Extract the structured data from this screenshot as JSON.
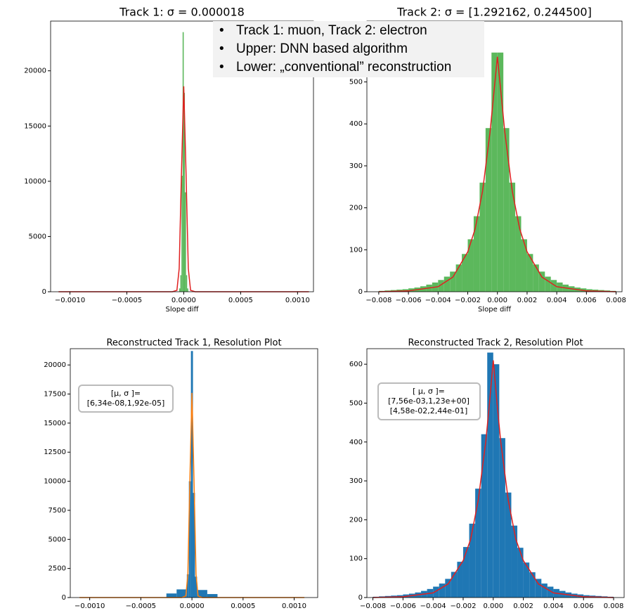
{
  "chart_data": [
    {
      "type": "histogram",
      "title": "Track 1: σ = 0.000018",
      "xlabel": "Slope diff",
      "color": "#5cb85c",
      "bins": [
        -4e-05,
        -3e-05,
        -2e-05,
        -1e-05,
        0,
        1e-05,
        2e-05,
        3e-05,
        4e-05
      ],
      "counts": [
        300,
        1500,
        10500,
        23500,
        18000,
        9000,
        1500,
        300
      ],
      "fit": {
        "color": "#e02020",
        "x": [
          -0.0011,
          -0.0001,
          -6e-05,
          -4e-05,
          -2e-05,
          0,
          2e-05,
          4e-05,
          6e-05,
          0.0001,
          0.0011
        ],
        "values": [
          0,
          0,
          130,
          2100,
          10800,
          18600,
          10800,
          2100,
          130,
          0,
          0
        ]
      },
      "xlim": [
        -0.00117,
        0.00114
      ],
      "ylim": [
        0,
        24500
      ],
      "xticks": [
        {
          "value": -0.001,
          "label": "−0.0010"
        },
        {
          "value": -0.0005,
          "label": "−0.0005"
        },
        {
          "value": 0,
          "label": "0.0000"
        },
        0.0005,
        {
          "value": 0.001,
          "label": "0.0010"
        }
      ],
      "yticks": [
        0,
        5000,
        10000,
        15000,
        20000
      ]
    },
    {
      "type": "histogram",
      "title": "Track 2: σ = [1.292162, 0.244500]",
      "xlabel": "Slope diff",
      "color": "#5cb85c",
      "bins": [
        -0.008,
        -0.0076,
        -0.0072,
        -0.0068,
        -0.0064,
        -0.006,
        -0.0056,
        -0.0052,
        -0.0048,
        -0.0044,
        -0.004,
        -0.0036,
        -0.0032,
        -0.0028,
        -0.0024,
        -0.002,
        -0.0016,
        -0.0012,
        -0.0008,
        -0.0004,
        0,
        0.0004,
        0.0008,
        0.0012,
        0.0016,
        0.002,
        0.0024,
        0.0028,
        0.0032,
        0.0036,
        0.004,
        0.0044,
        0.0048,
        0.0052,
        0.0056,
        0.006,
        0.0064,
        0.0068,
        0.0072,
        0.0076,
        0.008
      ],
      "counts": [
        2,
        3,
        4,
        5,
        6,
        8,
        10,
        13,
        17,
        22,
        28,
        36,
        48,
        65,
        90,
        125,
        180,
        260,
        390,
        570,
        570,
        390,
        260,
        180,
        125,
        90,
        65,
        48,
        36,
        28,
        22,
        17,
        13,
        10,
        8,
        6,
        5,
        4,
        3,
        2
      ],
      "fit": {
        "color": "#e02020",
        "x": [
          -0.008,
          -0.006,
          -0.004,
          -0.003,
          -0.002,
          -0.0015,
          -0.001,
          -0.0005,
          -0.00025,
          0,
          0.00025,
          0.0005,
          0.001,
          0.0015,
          0.002,
          0.003,
          0.004,
          0.006,
          0.008
        ],
        "values": [
          0,
          2,
          12,
          35,
          95,
          150,
          240,
          380,
          470,
          560,
          470,
          380,
          240,
          150,
          95,
          35,
          12,
          2,
          0
        ]
      },
      "xlim": [
        -0.0088,
        0.0084
      ],
      "ylim": [
        0,
        645
      ],
      "xticks": [
        {
          "value": -0.008,
          "label": "−0.008"
        },
        {
          "value": -0.006,
          "label": "−0.006"
        },
        {
          "value": -0.004,
          "label": "−0.004"
        },
        {
          "value": -0.002,
          "label": "−0.002"
        },
        {
          "value": 0,
          "label": "0.000"
        },
        0.002,
        0.004,
        0.006,
        0.008
      ],
      "yticks": [
        0,
        100,
        200,
        300,
        400,
        500
      ]
    },
    {
      "type": "histogram",
      "title": "Reconstructed Track 1,  Resolution Plot",
      "color": "#1f77b4",
      "annotation": [
        "[μ, σ ]=",
        "[6,34e-08,1,92e-05]"
      ],
      "bins": [
        -0.00025,
        -0.00015,
        -5e-05,
        -3e-05,
        -1e-05,
        1e-05,
        3e-05,
        5e-05,
        0.00015,
        0.00025
      ],
      "counts": [
        350,
        700,
        2000,
        10000,
        21200,
        9000,
        1800,
        650,
        300
      ],
      "fit": {
        "color": "#ff7f0e",
        "x": [
          -0.0011,
          -0.0001,
          -6e-05,
          -4e-05,
          -2e-05,
          0,
          2e-05,
          4e-05,
          6e-05,
          0.0001,
          0.0011
        ],
        "values": [
          0,
          0,
          134,
          2000,
          10230,
          17600,
          10230,
          2000,
          134,
          0,
          0
        ]
      },
      "xlim": [
        -0.00119,
        0.00123
      ],
      "ylim": [
        0,
        21400
      ],
      "xticks": [
        {
          "value": -0.001,
          "label": "−0.0010"
        },
        {
          "value": -0.0005,
          "label": "−0.0005"
        },
        {
          "value": 0,
          "label": "0.0000"
        },
        0.0005,
        {
          "value": 0.001,
          "label": "0.0010"
        }
      ],
      "yticks": [
        0,
        2500,
        5000,
        7500,
        10000,
        12500,
        15000,
        17500,
        20000
      ]
    },
    {
      "type": "histogram",
      "title": "Reconstructed Track 2,  Resolution Plot",
      "color": "#1f77b4",
      "annotation": [
        "[ μ, σ ]=",
        "[7,56e-03,1,23e+00]",
        "[4,58e-02,2,44e-01]"
      ],
      "bins": [
        -0.008,
        -0.0076,
        -0.0072,
        -0.0068,
        -0.0064,
        -0.006,
        -0.0056,
        -0.0052,
        -0.0048,
        -0.0044,
        -0.004,
        -0.0036,
        -0.0032,
        -0.0028,
        -0.0024,
        -0.002,
        -0.0016,
        -0.0012,
        -0.0008,
        -0.0004,
        0,
        0.0004,
        0.0008,
        0.0012,
        0.0016,
        0.002,
        0.0024,
        0.0028,
        0.0032,
        0.0036,
        0.004,
        0.0044,
        0.0048,
        0.0052,
        0.0056,
        0.006,
        0.0064,
        0.0068,
        0.0072,
        0.0076,
        0.008
      ],
      "counts": [
        2,
        3,
        4,
        5,
        6,
        8,
        10,
        13,
        17,
        22,
        28,
        36,
        48,
        66,
        92,
        130,
        190,
        280,
        420,
        630,
        600,
        410,
        270,
        185,
        128,
        90,
        65,
        48,
        36,
        28,
        22,
        17,
        13,
        10,
        8,
        6,
        5,
        4,
        3,
        2
      ],
      "fit": {
        "color": "#e02020",
        "x": [
          -0.008,
          -0.006,
          -0.004,
          -0.003,
          -0.002,
          -0.0015,
          -0.001,
          -0.0005,
          -0.00025,
          0,
          0.00025,
          0.0005,
          0.001,
          0.0015,
          0.002,
          0.003,
          0.004,
          0.006,
          0.008
        ],
        "values": [
          0,
          2,
          12,
          35,
          95,
          150,
          250,
          400,
          500,
          610,
          500,
          400,
          250,
          150,
          95,
          35,
          12,
          2,
          0
        ]
      },
      "xlim": [
        -0.0084,
        0.0087
      ],
      "ylim": [
        0,
        640
      ],
      "xticks": [
        {
          "value": -0.008,
          "label": "−0.008"
        },
        {
          "value": -0.006,
          "label": "−0.006"
        },
        {
          "value": -0.004,
          "label": "−0.004"
        },
        {
          "value": -0.002,
          "label": "−0.002"
        },
        {
          "value": 0,
          "label": "0.000"
        },
        0.002,
        0.004,
        0.006,
        0.008
      ],
      "yticks": [
        0,
        100,
        200,
        300,
        400,
        500,
        600
      ]
    }
  ],
  "overlay": {
    "bullets": [
      "Track 1: muon, Track 2: electron",
      "Upper: DNN based algorithm",
      "Lower: „conventional” reconstruction"
    ]
  }
}
